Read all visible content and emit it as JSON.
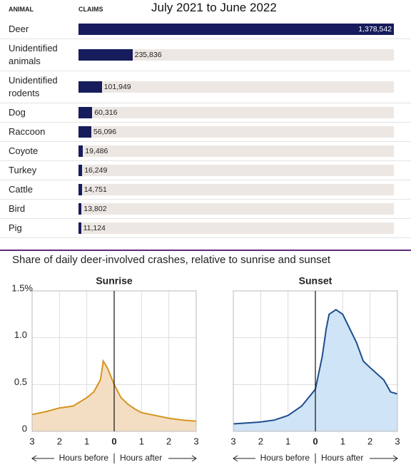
{
  "chart_data": [
    {
      "type": "hbar",
      "title": "July 2021 to June 2022",
      "category_header": "ANIMAL",
      "value_header": "CLAIMS",
      "categories": [
        "Deer",
        "Unidentified animals",
        "Unidentified rodents",
        "Dog",
        "Raccoon",
        "Coyote",
        "Turkey",
        "Cattle",
        "Bird",
        "Pig"
      ],
      "values": [
        1378542,
        235836,
        101949,
        60316,
        56096,
        19486,
        16249,
        14751,
        13802,
        11124
      ],
      "value_labels": [
        "1,378,542",
        "235,836",
        "101,949",
        "60,316",
        "56,096",
        "19,486",
        "16,249",
        "14,751",
        "13,802",
        "11,124"
      ],
      "color": "#161c5c",
      "track_color": "#ede7e3",
      "xlim": [
        0,
        1378542
      ]
    },
    {
      "type": "area",
      "title": "Share of daily deer-involved crashes, relative to sunrise and sunset",
      "x_label_left": "Hours before",
      "x_label_right": "Hours after",
      "xlim": [
        -3,
        3
      ],
      "ylim": [
        0,
        1.5
      ],
      "xticks": [
        {
          "value": -3,
          "label": "3"
        },
        {
          "value": -2,
          "label": "2"
        },
        {
          "value": -1,
          "label": "1"
        },
        0,
        1,
        2,
        3
      ],
      "yticks": [
        0,
        0.5,
        {
          "value": 1,
          "label": "1.0"
        },
        {
          "value": 1.5,
          "label": "1.5%"
        }
      ],
      "grid": true,
      "subplots": [
        {
          "title": "Sunrise",
          "color": "#d4951e",
          "fill": "#f4dec3",
          "x": [
            -3,
            -2.5,
            -2,
            -1.5,
            -1,
            -0.75,
            -0.5,
            -0.4,
            -0.25,
            0,
            0.25,
            0.5,
            0.75,
            1,
            1.5,
            2,
            2.5,
            3
          ],
          "values": [
            0.18,
            0.21,
            0.25,
            0.27,
            0.36,
            0.42,
            0.55,
            0.75,
            0.68,
            0.5,
            0.36,
            0.29,
            0.24,
            0.2,
            0.17,
            0.14,
            0.12,
            0.11
          ]
        },
        {
          "title": "Sunset",
          "color": "#1f4e8c",
          "fill": "#cfe4f6",
          "x": [
            -3,
            -2.5,
            -2,
            -1.5,
            -1,
            -0.75,
            -0.5,
            -0.25,
            0,
            0.25,
            0.4,
            0.5,
            0.75,
            1,
            1.25,
            1.5,
            1.75,
            2,
            2.5,
            2.75,
            3
          ],
          "values": [
            0.08,
            0.09,
            0.1,
            0.12,
            0.17,
            0.22,
            0.27,
            0.36,
            0.45,
            0.8,
            1.1,
            1.25,
            1.3,
            1.25,
            1.1,
            0.95,
            0.75,
            0.68,
            0.55,
            0.42,
            0.4
          ]
        }
      ]
    }
  ]
}
